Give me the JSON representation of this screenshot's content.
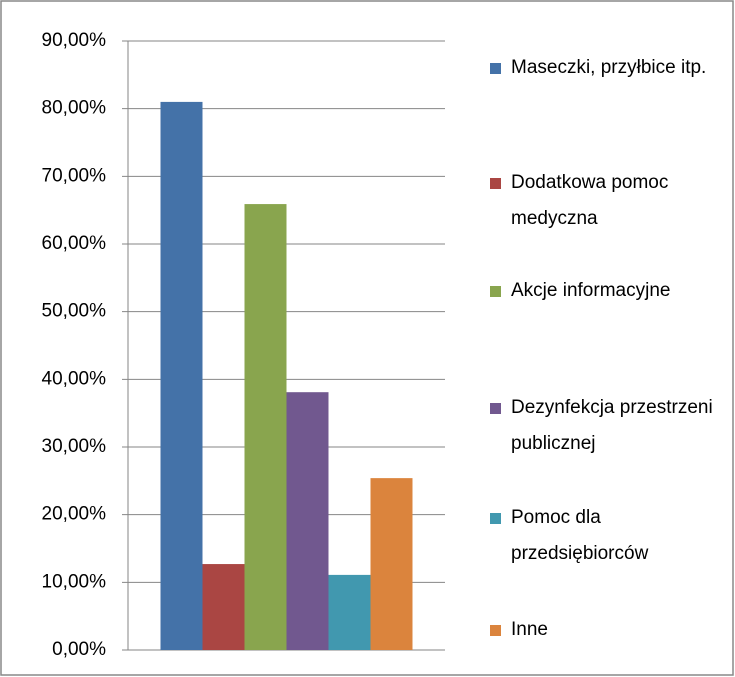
{
  "chart_data": {
    "type": "bar",
    "categories": [
      null
    ],
    "series": [
      {
        "name": "Maseczki, przyłbice itp.",
        "color": "#4472a8",
        "values": [
          81.0
        ]
      },
      {
        "name": "Dodatkowa pomoc medyczna",
        "color": "#aa4643",
        "values": [
          12.7
        ]
      },
      {
        "name": "Akcje informacyjne",
        "color": "#89a54e",
        "values": [
          65.9
        ]
      },
      {
        "name": "Dezynfekcja przestrzeni publicznej",
        "color": "#71588f",
        "values": [
          38.1
        ]
      },
      {
        "name": "Pomoc dla przedsiębiorców",
        "color": "#4198af",
        "values": [
          11.1
        ]
      },
      {
        "name": "Inne",
        "color": "#db843d",
        "values": [
          25.4
        ]
      }
    ],
    "ylim": [
      0,
      90
    ],
    "yticks": [
      {
        "value": 0,
        "label": "0,00%"
      },
      {
        "value": 10,
        "label": "10,00%"
      },
      {
        "value": 20,
        "label": "20,00%"
      },
      {
        "value": 30,
        "label": "30,00%"
      },
      {
        "value": 40,
        "label": "40,00%"
      },
      {
        "value": 50,
        "label": "50,00%"
      },
      {
        "value": 60,
        "label": "60,00%"
      },
      {
        "value": 70,
        "label": "70,00%"
      },
      {
        "value": 80,
        "label": "80,00%"
      },
      {
        "value": 90,
        "label": "90,00%"
      }
    ],
    "grid": true,
    "legend": "right"
  }
}
